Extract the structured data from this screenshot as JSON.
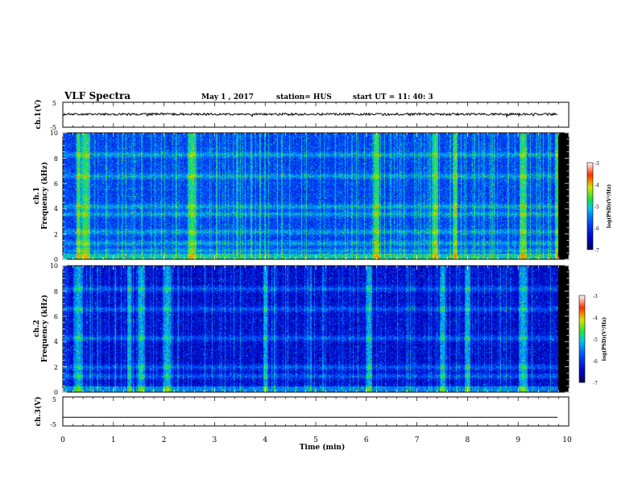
{
  "header": {
    "title": "VLF Spectra",
    "date": "May 1 , 2017",
    "station": "station= HUS",
    "start": "start UT = 11: 40: 3"
  },
  "chart_data": [
    {
      "type": "line",
      "panel": "ch1-waveform",
      "ylabel": "ch.1(V)",
      "ylim": [
        -5,
        5
      ],
      "yticks": [
        "5",
        "-5"
      ],
      "x": [
        0,
        10
      ],
      "series": [
        {
          "values": [
            0.2,
            0.2
          ]
        }
      ],
      "line_color": "#000000"
    },
    {
      "type": "heatmap",
      "panel": "ch1-spectrogram",
      "ylabel_1": "ch.1",
      "ylabel_2": "Frequency (kHz)",
      "ylim": [
        0,
        10
      ],
      "yticks": [
        "0",
        "2",
        "4",
        "6",
        "8",
        "10"
      ],
      "xlim": [
        0,
        10
      ],
      "bright_bursts_min": [
        0.3,
        0.45,
        2.55,
        6.2,
        7.35,
        7.75,
        9.1,
        9.8
      ],
      "horizontal_bands_khz": [
        0.7,
        1.3,
        2.2,
        3.6,
        4.2,
        6.6,
        8.3
      ],
      "colorbar": {
        "ticks": [
          "-3",
          "-4",
          "-5",
          "-6",
          "-7"
        ],
        "range": [
          -7,
          -3
        ],
        "label": "log(PSD)(V²/Hz)"
      }
    },
    {
      "type": "heatmap",
      "panel": "ch2-spectrogram",
      "ylabel_1": "ch.2",
      "ylabel_2": "Frequency (kHz)",
      "ylim": [
        0,
        10
      ],
      "yticks": [
        "0",
        "2",
        "4",
        "6",
        "8",
        "10"
      ],
      "xlim": [
        0,
        10
      ],
      "bright_bursts_min": [
        0.3,
        1.3,
        1.55,
        2.05,
        4.0,
        6.05,
        7.5,
        8.0,
        9.1
      ],
      "horizontal_bands_khz": [
        0.3,
        1.3,
        2.0,
        4.3,
        6.6,
        8.2
      ],
      "colorbar": {
        "ticks": [
          "-3",
          "-4",
          "-5",
          "-6",
          "-7"
        ],
        "range": [
          -7,
          -3
        ],
        "label": "log(PSD)(V²/Hz)"
      }
    },
    {
      "type": "line",
      "panel": "ch3-waveform",
      "ylabel": "ch.3(V)",
      "ylim": [
        -5,
        5
      ],
      "yticks": [
        "5",
        "-5"
      ],
      "x": [
        0,
        10
      ],
      "series": [
        {
          "values": [
            -2.0,
            -2.0
          ]
        }
      ],
      "line_color": "#000000"
    }
  ],
  "x_axis": {
    "label": "Time (min)",
    "ticks": [
      "0",
      "1",
      "2",
      "3",
      "4",
      "5",
      "6",
      "7",
      "8",
      "9",
      "10"
    ]
  }
}
